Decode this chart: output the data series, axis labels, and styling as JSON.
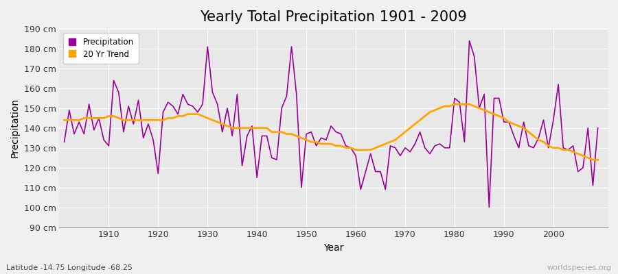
{
  "title": "Yearly Total Precipitation 1901 - 2009",
  "xlabel": "Year",
  "ylabel": "Precipitation",
  "subtitle": "Latitude -14.75 Longitude -68.25",
  "watermark": "worldspecies.org",
  "ylim": [
    90,
    190
  ],
  "yticks": [
    90,
    100,
    110,
    120,
    130,
    140,
    150,
    160,
    170,
    180,
    190
  ],
  "ytick_labels": [
    "90 cm",
    "100 cm",
    "110 cm",
    "120 cm",
    "130 cm",
    "140 cm",
    "150 cm",
    "160 cm",
    "170 cm",
    "180 cm",
    "190 cm"
  ],
  "years": [
    1901,
    1902,
    1903,
    1904,
    1905,
    1906,
    1907,
    1908,
    1909,
    1910,
    1911,
    1912,
    1913,
    1914,
    1915,
    1916,
    1917,
    1918,
    1919,
    1920,
    1921,
    1922,
    1923,
    1924,
    1925,
    1926,
    1927,
    1928,
    1929,
    1930,
    1931,
    1932,
    1933,
    1934,
    1935,
    1936,
    1937,
    1938,
    1939,
    1940,
    1941,
    1942,
    1943,
    1944,
    1945,
    1946,
    1947,
    1948,
    1949,
    1950,
    1951,
    1952,
    1953,
    1954,
    1955,
    1956,
    1957,
    1958,
    1959,
    1960,
    1961,
    1962,
    1963,
    1964,
    1965,
    1966,
    1967,
    1968,
    1969,
    1970,
    1971,
    1972,
    1973,
    1974,
    1975,
    1976,
    1977,
    1978,
    1979,
    1980,
    1981,
    1982,
    1983,
    1984,
    1985,
    1986,
    1987,
    1988,
    1989,
    1990,
    1991,
    1992,
    1993,
    1994,
    1995,
    1996,
    1997,
    1998,
    1999,
    2000,
    2001,
    2002,
    2003,
    2004,
    2005,
    2006,
    2007,
    2008,
    2009
  ],
  "precipitation": [
    133,
    149,
    137,
    143,
    137,
    152,
    139,
    145,
    134,
    131,
    164,
    158,
    138,
    151,
    142,
    154,
    135,
    142,
    134,
    117,
    148,
    153,
    151,
    147,
    157,
    152,
    151,
    148,
    152,
    181,
    158,
    152,
    138,
    150,
    136,
    157,
    121,
    136,
    141,
    115,
    136,
    136,
    125,
    124,
    150,
    156,
    181,
    157,
    110,
    137,
    138,
    131,
    135,
    134,
    141,
    138,
    137,
    131,
    130,
    126,
    109,
    118,
    127,
    118,
    118,
    109,
    131,
    130,
    126,
    130,
    128,
    132,
    138,
    130,
    127,
    131,
    132,
    130,
    130,
    155,
    153,
    133,
    184,
    176,
    150,
    157,
    100,
    155,
    155,
    143,
    143,
    136,
    130,
    143,
    131,
    130,
    135,
    144,
    130,
    144,
    162,
    130,
    129,
    131,
    118,
    120,
    140,
    111,
    140
  ],
  "trend": [
    144,
    144,
    144,
    144,
    145,
    145,
    145,
    145,
    145,
    146,
    146,
    145,
    144,
    144,
    144,
    144,
    144,
    144,
    144,
    144,
    144,
    145,
    145,
    146,
    146,
    147,
    147,
    147,
    146,
    145,
    144,
    143,
    142,
    141,
    140,
    140,
    140,
    140,
    140,
    140,
    140,
    140,
    138,
    138,
    138,
    137,
    137,
    136,
    135,
    134,
    133,
    133,
    132,
    132,
    132,
    131,
    131,
    130,
    130,
    129,
    129,
    129,
    129,
    130,
    131,
    132,
    133,
    134,
    136,
    138,
    140,
    142,
    144,
    146,
    148,
    149,
    150,
    151,
    151,
    152,
    152,
    152,
    152,
    151,
    150,
    149,
    148,
    147,
    146,
    145,
    143,
    142,
    141,
    140,
    138,
    136,
    134,
    133,
    131,
    130,
    130,
    129,
    129,
    128,
    127,
    126,
    125,
    124,
    124
  ],
  "precip_color": "#990099",
  "trend_color": "#FFA500",
  "bg_color": "#f0f0f0",
  "plot_bg_color": "#e8e8e8",
  "grid_color": "#ffffff",
  "title_fontsize": 15,
  "label_fontsize": 10,
  "tick_fontsize": 9,
  "xticks": [
    1910,
    1920,
    1930,
    1940,
    1950,
    1960,
    1970,
    1980,
    1990,
    2000
  ]
}
